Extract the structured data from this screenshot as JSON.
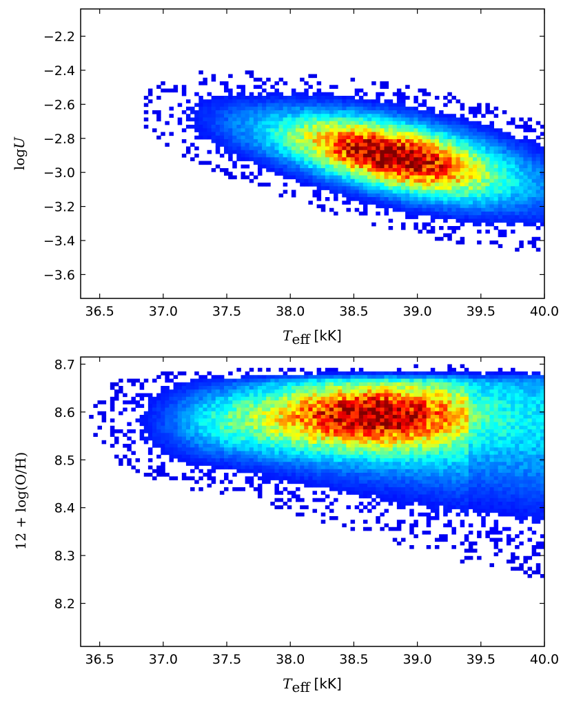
{
  "chart_data": [
    {
      "type": "heatmap",
      "xlabel": "T_eff [kK]",
      "xlabel_parts": {
        "symbol": "T",
        "sub": "eff",
        "unit": "[kK]"
      },
      "ylabel": "logU",
      "ylabel_parts": {
        "prefix": "log",
        "symbol": "U"
      },
      "xlim": [
        36.35,
        40.0
      ],
      "ylim": [
        -3.74,
        -2.04
      ],
      "xticks": [
        36.5,
        37.0,
        37.5,
        38.0,
        38.5,
        39.0,
        39.5,
        40.0
      ],
      "xtick_labels": [
        "36.5",
        "37.0",
        "37.5",
        "38.0",
        "38.5",
        "39.0",
        "39.5",
        "40.0"
      ],
      "yticks": [
        -2.2,
        -2.4,
        -2.6,
        -2.8,
        -3.0,
        -3.2,
        -3.4,
        -3.6
      ],
      "ytick_labels": [
        "−2.2",
        "−2.4",
        "−2.6",
        "−2.8",
        "−3.0",
        "−3.2",
        "−3.4",
        "−3.6"
      ],
      "colormap": "jet",
      "density_model": {
        "ridge_start": [
          37.0,
          -2.64
        ],
        "ridge_end": [
          40.0,
          -3.08
        ],
        "peak": [
          38.8,
          -2.9
        ],
        "scatter_extent_x": [
          36.35,
          40.0
        ],
        "scatter_extent_y": [
          -3.74,
          -2.04
        ]
      },
      "grid": false
    },
    {
      "type": "heatmap",
      "xlabel": "T_eff [kK]",
      "xlabel_parts": {
        "symbol": "T",
        "sub": "eff",
        "unit": "[kK]"
      },
      "ylabel": "12 + log(O/H)",
      "xlim": [
        36.35,
        40.0
      ],
      "ylim": [
        8.11,
        8.715
      ],
      "xticks": [
        36.5,
        37.0,
        37.5,
        38.0,
        38.5,
        39.0,
        39.5,
        40.0
      ],
      "xtick_labels": [
        "36.5",
        "37.0",
        "37.5",
        "38.0",
        "38.5",
        "39.0",
        "39.5",
        "40.0"
      ],
      "yticks": [
        8.7,
        8.6,
        8.5,
        8.4,
        8.3,
        8.2
      ],
      "ytick_labels": [
        "8.7",
        "8.6",
        "8.5",
        "8.4",
        "8.3",
        "8.2"
      ],
      "colormap": "jet",
      "density_model": {
        "upper_edge": 8.66,
        "peak": [
          38.65,
          8.595
        ],
        "scatter_extent_x": [
          36.35,
          40.0
        ],
        "scatter_extent_y": [
          8.11,
          8.715
        ]
      },
      "grid": false
    }
  ]
}
